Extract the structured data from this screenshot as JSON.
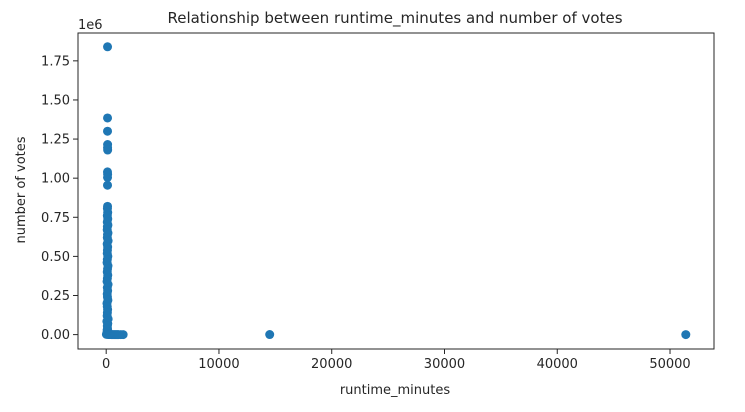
{
  "chart_data": {
    "type": "scatter",
    "title": "Relationship between runtime_minutes and number of votes",
    "xlabel": "runtime_minutes",
    "ylabel": "number of votes",
    "y_offset_label": "1e6",
    "xlim": [
      -2500,
      53900
    ],
    "ylim": [
      -92000,
      1928000
    ],
    "x_ticks": [
      0,
      10000,
      20000,
      30000,
      40000,
      50000
    ],
    "x_tick_labels": [
      "0",
      "10000",
      "20000",
      "30000",
      "40000",
      "50000"
    ],
    "y_ticks": [
      0,
      250000,
      500000,
      750000,
      1000000,
      1250000,
      1500000,
      1750000
    ],
    "y_tick_labels": [
      "0.00",
      "0.25",
      "0.50",
      "0.75",
      "1.00",
      "1.25",
      "1.50",
      "1.75"
    ],
    "grid": false,
    "legend": "none",
    "color": "#1f77b4",
    "points": [
      [
        120,
        1840000
      ],
      [
        120,
        1385000
      ],
      [
        118,
        1300000
      ],
      [
        125,
        1215000
      ],
      [
        122,
        1195000
      ],
      [
        130,
        1180000
      ],
      [
        115,
        1040000
      ],
      [
        128,
        1025000
      ],
      [
        120,
        1005000
      ],
      [
        117,
        955000
      ],
      [
        120,
        820000
      ],
      [
        110,
        805000
      ],
      [
        135,
        780000
      ],
      [
        100,
        760000
      ],
      [
        140,
        740000
      ],
      [
        95,
        720000
      ],
      [
        150,
        700000
      ],
      [
        105,
        690000
      ],
      [
        90,
        670000
      ],
      [
        160,
        650000
      ],
      [
        115,
        640000
      ],
      [
        100,
        620000
      ],
      [
        170,
        600000
      ],
      [
        85,
        580000
      ],
      [
        130,
        560000
      ],
      [
        110,
        540000
      ],
      [
        95,
        520000
      ],
      [
        145,
        500000
      ],
      [
        100,
        480000
      ],
      [
        80,
        460000
      ],
      [
        160,
        440000
      ],
      [
        120,
        420000
      ],
      [
        95,
        400000
      ],
      [
        140,
        380000
      ],
      [
        105,
        360000
      ],
      [
        75,
        340000
      ],
      [
        165,
        320000
      ],
      [
        100,
        300000
      ],
      [
        130,
        280000
      ],
      [
        90,
        260000
      ],
      [
        110,
        240000
      ],
      [
        150,
        220000
      ],
      [
        70,
        200000
      ],
      [
        95,
        180000
      ],
      [
        125,
        160000
      ],
      [
        105,
        140000
      ],
      [
        85,
        120000
      ],
      [
        175,
        100000
      ],
      [
        60,
        85000
      ],
      [
        140,
        70000
      ],
      [
        100,
        55000
      ],
      [
        115,
        40000
      ],
      [
        80,
        30000
      ],
      [
        160,
        20000
      ],
      [
        95,
        15000
      ],
      [
        130,
        10000
      ],
      [
        50,
        8000
      ],
      [
        120,
        5000
      ],
      [
        90,
        3000
      ],
      [
        180,
        2000
      ],
      [
        20,
        1500
      ],
      [
        200,
        1000
      ],
      [
        250,
        800
      ],
      [
        300,
        500
      ],
      [
        350,
        400
      ],
      [
        400,
        300
      ],
      [
        500,
        200
      ],
      [
        600,
        150
      ],
      [
        700,
        100
      ],
      [
        800,
        80
      ],
      [
        900,
        60
      ],
      [
        1000,
        40
      ],
      [
        1100,
        30
      ],
      [
        1300,
        20
      ],
      [
        1500,
        10
      ],
      [
        14500,
        500
      ],
      [
        51400,
        100
      ]
    ]
  }
}
